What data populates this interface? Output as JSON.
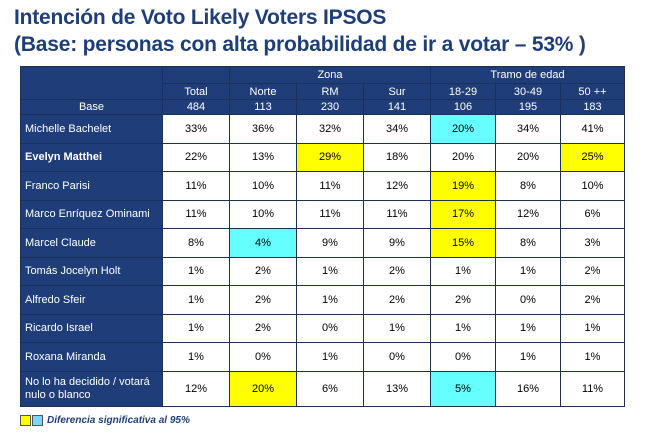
{
  "title": {
    "line1": "Intención de Voto Likely Voters IPSOS",
    "line2": "(Base: personas con alta probabilidad de ir a votar – 53% )"
  },
  "table": {
    "group_headers": {
      "zona": "Zona",
      "tramo": "Tramo de edad"
    },
    "columns": [
      "Total",
      "Norte",
      "RM",
      "Sur",
      "18-29",
      "30-49",
      "50 ++"
    ],
    "base": {
      "label": "Base",
      "values": [
        "484",
        "113",
        "230",
        "141",
        "106",
        "195",
        "183"
      ]
    },
    "rows": [
      {
        "name": "Michelle Bachelet",
        "values": [
          "33%",
          "36%",
          "32%",
          "34%",
          "20%",
          "34%",
          "41%"
        ],
        "highlights": [
          "",
          "",
          "",
          "",
          "cyan",
          "",
          ""
        ]
      },
      {
        "name": "Evelyn Matthei",
        "bold": true,
        "values": [
          "22%",
          "13%",
          "29%",
          "18%",
          "20%",
          "20%",
          "25%"
        ],
        "highlights": [
          "",
          "",
          "yellow",
          "",
          "",
          "",
          "yellow"
        ]
      },
      {
        "name": "Franco Parisi",
        "values": [
          "11%",
          "10%",
          "11%",
          "12%",
          "19%",
          "8%",
          "10%"
        ],
        "highlights": [
          "",
          "",
          "",
          "",
          "yellow",
          "",
          ""
        ]
      },
      {
        "name": "Marco Enríquez Ominami",
        "values": [
          "11%",
          "10%",
          "11%",
          "11%",
          "17%",
          "12%",
          "6%"
        ],
        "highlights": [
          "",
          "",
          "",
          "",
          "yellow",
          "",
          ""
        ]
      },
      {
        "name": "Marcel Claude",
        "values": [
          "8%",
          "4%",
          "9%",
          "9%",
          "15%",
          "8%",
          "3%"
        ],
        "highlights": [
          "",
          "cyan",
          "",
          "",
          "yellow",
          "",
          ""
        ]
      },
      {
        "name": "Tomás Jocelyn Holt",
        "values": [
          "1%",
          "2%",
          "1%",
          "2%",
          "1%",
          "1%",
          "2%"
        ],
        "highlights": [
          "",
          "",
          "",
          "",
          "",
          "",
          ""
        ]
      },
      {
        "name": "Alfredo Sfeir",
        "values": [
          "1%",
          "2%",
          "1%",
          "2%",
          "2%",
          "0%",
          "2%"
        ],
        "highlights": [
          "",
          "",
          "",
          "",
          "",
          "",
          ""
        ]
      },
      {
        "name": "Ricardo Israel",
        "values": [
          "1%",
          "2%",
          "0%",
          "1%",
          "1%",
          "1%",
          "1%"
        ],
        "highlights": [
          "",
          "",
          "",
          "",
          "",
          "",
          ""
        ]
      },
      {
        "name": "Roxana Miranda",
        "values": [
          "1%",
          "0%",
          "1%",
          "0%",
          "0%",
          "1%",
          "1%"
        ],
        "highlights": [
          "",
          "",
          "",
          "",
          "",
          "",
          ""
        ]
      },
      {
        "name": "No lo ha decidido / votará nulo o blanco",
        "values": [
          "12%",
          "20%",
          "6%",
          "13%",
          "5%",
          "16%",
          "11%"
        ],
        "highlights": [
          "",
          "yellow",
          "",
          "",
          "cyan",
          "",
          ""
        ]
      }
    ]
  },
  "legend": {
    "text": "Diferencia significativa al 95%",
    "colors": {
      "yellow": "#ffff00",
      "cyan": "#66ffff",
      "header": "#1f3d78",
      "title": "#1f3e78"
    }
  }
}
